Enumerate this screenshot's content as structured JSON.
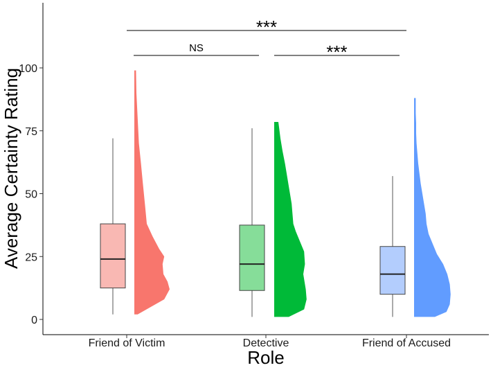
{
  "chart_data": {
    "type": "raincloud",
    "xlabel": "Role",
    "ylabel": "Average Certainty Rating",
    "ylim": [
      -6,
      125
    ],
    "yticks": [
      0,
      25,
      50,
      75,
      100
    ],
    "grid": false,
    "categories": [
      "Friend of Victim",
      "Detective",
      "Friend of Accused"
    ],
    "series": [
      {
        "category": "Friend of Victim",
        "box": {
          "whisker_low": 2,
          "q1": 12.5,
          "median": 24,
          "q3": 38,
          "whisker_high": 72
        },
        "box_color": "#f9b8b3",
        "cloud_color": "#f8766d",
        "density": {
          "y": [
            2,
            5,
            8,
            12,
            15,
            18,
            22,
            25,
            28,
            33,
            38,
            45,
            55,
            62,
            70,
            80,
            90,
            99
          ],
          "w": [
            0.08,
            0.4,
            0.72,
            0.85,
            0.8,
            0.7,
            0.68,
            0.72,
            0.6,
            0.44,
            0.3,
            0.26,
            0.2,
            0.16,
            0.11,
            0.08,
            0.05,
            0.04
          ]
        }
      },
      {
        "category": "Detective",
        "box": {
          "whisker_low": 1,
          "q1": 11.5,
          "median": 22,
          "q3": 37.5,
          "whisker_high": 76
        },
        "box_color": "#86dd99",
        "cloud_color": "#00ba38",
        "density": {
          "y": [
            1,
            4,
            8,
            12,
            18,
            22,
            27,
            31,
            35,
            38,
            42,
            46,
            50,
            56,
            62,
            67,
            72,
            76,
            78.5
          ],
          "w": [
            0.35,
            0.72,
            0.78,
            0.76,
            0.7,
            0.74,
            0.72,
            0.62,
            0.52,
            0.46,
            0.44,
            0.42,
            0.38,
            0.32,
            0.26,
            0.2,
            0.15,
            0.12,
            0.1
          ]
        }
      },
      {
        "category": "Friend of Accused",
        "box": {
          "whisker_low": 1,
          "q1": 10,
          "median": 18,
          "q3": 29,
          "whisker_high": 57
        },
        "box_color": "#b3cdfd",
        "cloud_color": "#619cff",
        "density": {
          "y": [
            1,
            3,
            6,
            10,
            14,
            18,
            22,
            26,
            30,
            34,
            38,
            42,
            46,
            50,
            54,
            58,
            62,
            66,
            70,
            74,
            78,
            82,
            85,
            88
          ],
          "w": [
            0.5,
            0.78,
            0.86,
            0.88,
            0.86,
            0.8,
            0.7,
            0.55,
            0.45,
            0.35,
            0.3,
            0.28,
            0.24,
            0.2,
            0.16,
            0.13,
            0.1,
            0.08,
            0.06,
            0.05,
            0.05,
            0.04,
            0.04,
            0.04
          ]
        }
      }
    ],
    "significance": [
      {
        "from": 0,
        "to": 1,
        "label": "NS",
        "level": 105
      },
      {
        "from": 1,
        "to": 2,
        "label": "***",
        "level": 105
      },
      {
        "from": 0,
        "to": 2,
        "label": "***",
        "level": 115
      }
    ]
  }
}
